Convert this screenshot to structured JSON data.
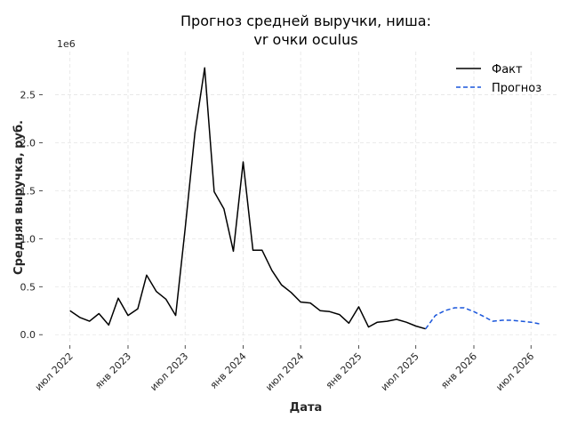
{
  "chart_data": {
    "type": "line",
    "title_line1": "Прогноз средней выручки, ниша:",
    "title_line2": "vr очки oculus",
    "xlabel": "Дата",
    "ylabel": "Средняя выручка, руб.",
    "y_offset_label": "1e6",
    "ylim": [
      -0.1,
      2.95
    ],
    "y_ticks": [
      0.0,
      0.5,
      1.0,
      1.5,
      2.0,
      2.5
    ],
    "y_tick_labels": [
      "0.0",
      "0.5",
      "1.0",
      "1.5",
      "2.0",
      "2.5"
    ],
    "x_ticks": [
      "2022-07-01",
      "2023-01-01",
      "2023-07-01",
      "2024-01-01",
      "2024-07-01",
      "2025-01-01",
      "2025-07-01",
      "2026-01-01",
      "2026-07-01"
    ],
    "x_tick_labels": [
      "июл 2022",
      "янв 2023",
      "июл 2023",
      "янв 2024",
      "июл 2024",
      "янв 2025",
      "июл 2025",
      "янв 2026",
      "июл 2026"
    ],
    "legend_position": "top-right",
    "grid": true,
    "series": [
      {
        "name": "Факт",
        "color": "#000000",
        "style": "solid",
        "x": [
          "2022-07-01",
          "2022-08-01",
          "2022-09-01",
          "2022-10-01",
          "2022-11-01",
          "2022-12-01",
          "2023-01-01",
          "2023-02-01",
          "2023-03-01",
          "2023-04-01",
          "2023-05-01",
          "2023-06-01",
          "2023-07-01",
          "2023-08-01",
          "2023-09-01",
          "2023-10-01",
          "2023-11-01",
          "2023-12-01",
          "2024-01-01",
          "2024-02-01",
          "2024-03-01",
          "2024-04-01",
          "2024-05-01",
          "2024-06-01",
          "2024-07-01",
          "2024-08-01",
          "2024-09-01",
          "2024-10-01",
          "2024-11-01",
          "2024-12-01",
          "2025-01-01",
          "2025-02-01",
          "2025-03-01",
          "2025-04-01",
          "2025-05-01",
          "2025-06-01",
          "2025-07-01",
          "2025-08-01"
        ],
        "y": [
          0.25,
          0.18,
          0.14,
          0.22,
          0.1,
          0.38,
          0.2,
          0.27,
          0.62,
          0.45,
          0.37,
          0.2,
          1.1,
          2.1,
          2.78,
          1.49,
          1.31,
          0.87,
          1.8,
          0.88,
          0.88,
          0.67,
          0.52,
          0.44,
          0.34,
          0.33,
          0.25,
          0.24,
          0.21,
          0.12,
          0.29,
          0.08,
          0.13,
          0.14,
          0.16,
          0.13,
          0.09,
          0.06
        ]
      },
      {
        "name": "Прогноз",
        "color": "#1a56db",
        "style": "dashed",
        "x": [
          "2025-08-01",
          "2025-09-01",
          "2025-10-01",
          "2025-11-01",
          "2025-12-01",
          "2026-01-01",
          "2026-02-01",
          "2026-03-01",
          "2026-04-01",
          "2026-05-01",
          "2026-06-01",
          "2026-07-01",
          "2026-08-01"
        ],
        "y": [
          0.06,
          0.2,
          0.25,
          0.28,
          0.28,
          0.24,
          0.19,
          0.14,
          0.15,
          0.15,
          0.14,
          0.13,
          0.11
        ]
      }
    ]
  }
}
